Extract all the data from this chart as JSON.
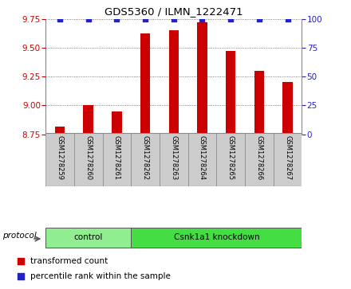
{
  "title": "GDS5360 / ILMN_1222471",
  "samples": [
    "GSM1278259",
    "GSM1278260",
    "GSM1278261",
    "GSM1278262",
    "GSM1278263",
    "GSM1278264",
    "GSM1278265",
    "GSM1278266",
    "GSM1278267"
  ],
  "transformed_count": [
    8.82,
    9.0,
    8.95,
    9.62,
    9.65,
    9.72,
    9.47,
    9.3,
    9.2
  ],
  "percentile_rank": [
    100,
    100,
    100,
    100,
    100,
    100,
    100,
    100,
    100
  ],
  "ylim_left": [
    8.75,
    9.75
  ],
  "ylim_right": [
    0,
    100
  ],
  "yticks_left": [
    8.75,
    9.0,
    9.25,
    9.5,
    9.75
  ],
  "yticks_right": [
    0,
    25,
    50,
    75,
    100
  ],
  "bar_color": "#cc0000",
  "dot_color": "#2222cc",
  "bar_width": 0.35,
  "groups": [
    {
      "label": "control",
      "indices": [
        0,
        1,
        2
      ],
      "color": "#90ee90"
    },
    {
      "label": "Csnk1a1 knockdown",
      "indices": [
        3,
        4,
        5,
        6,
        7,
        8
      ],
      "color": "#44dd44"
    }
  ],
  "protocol_label": "protocol",
  "legend_bar_label": "transformed count",
  "legend_dot_label": "percentile rank within the sample",
  "tick_color_left": "#cc0000",
  "tick_color_right": "#2222cc",
  "grid_color": "#555555",
  "sample_box_color": "#cccccc",
  "sample_box_edge": "#888888"
}
